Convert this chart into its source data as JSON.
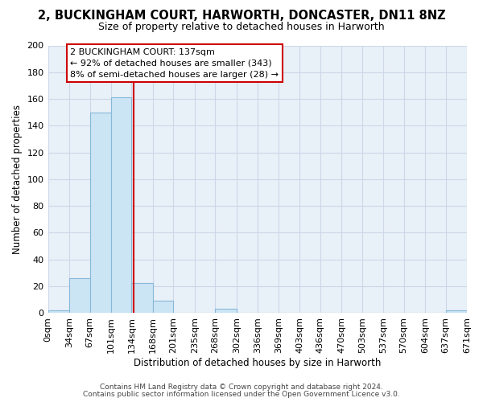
{
  "title": "2, BUCKINGHAM COURT, HARWORTH, DONCASTER, DN11 8NZ",
  "subtitle": "Size of property relative to detached houses in Harworth",
  "xlabel": "Distribution of detached houses by size in Harworth",
  "ylabel": "Number of detached properties",
  "bar_edges": [
    0,
    34,
    67,
    101,
    134,
    168,
    201,
    235,
    268,
    302,
    336,
    369,
    403,
    436,
    470,
    503,
    537,
    570,
    604,
    637,
    671
  ],
  "bar_heights": [
    2,
    26,
    150,
    161,
    22,
    9,
    0,
    0,
    3,
    0,
    0,
    0,
    0,
    0,
    0,
    0,
    0,
    0,
    0,
    2
  ],
  "bar_color": "#cce5f5",
  "bar_edge_color": "#88b8d8",
  "vline_x": 137,
  "vline_color": "#cc0000",
  "ylim": [
    0,
    200
  ],
  "yticks": [
    0,
    20,
    40,
    60,
    80,
    100,
    120,
    140,
    160,
    180,
    200
  ],
  "xtick_labels": [
    "0sqm",
    "34sqm",
    "67sqm",
    "101sqm",
    "134sqm",
    "168sqm",
    "201sqm",
    "235sqm",
    "268sqm",
    "302sqm",
    "336sqm",
    "369sqm",
    "403sqm",
    "436sqm",
    "470sqm",
    "503sqm",
    "537sqm",
    "570sqm",
    "604sqm",
    "637sqm",
    "671sqm"
  ],
  "annotation_title": "2 BUCKINGHAM COURT: 137sqm",
  "annotation_line1": "← 92% of detached houses are smaller (343)",
  "annotation_line2": "8% of semi-detached houses are larger (28) →",
  "annotation_box_color": "#ffffff",
  "annotation_box_edge": "#cc0000",
  "footer_line1": "Contains HM Land Registry data © Crown copyright and database right 2024.",
  "footer_line2": "Contains public sector information licensed under the Open Government Licence v3.0.",
  "background_color": "#ffffff",
  "grid_color": "#ccd8e8",
  "plot_bg_color": "#e8f0f8"
}
